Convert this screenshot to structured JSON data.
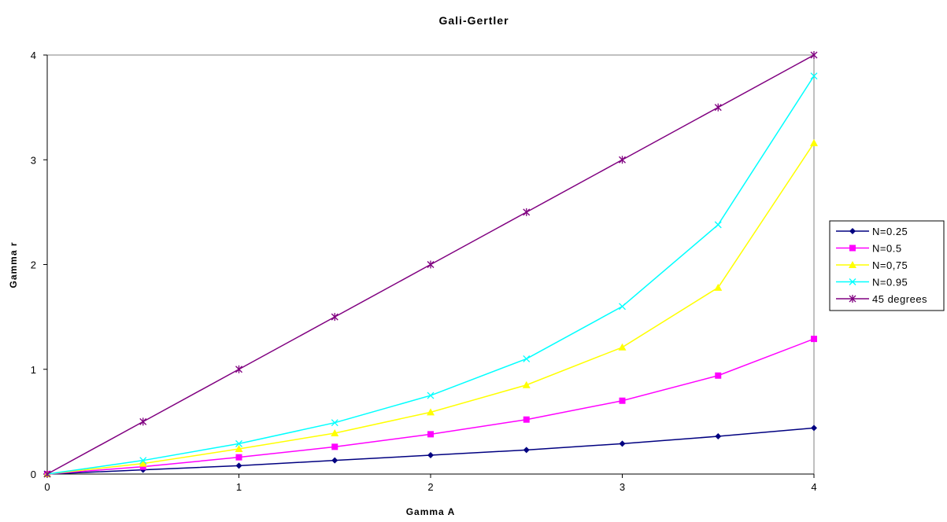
{
  "chart_data": {
    "type": "line",
    "title": "Gali-Gertler",
    "xlabel": "Gamma A",
    "ylabel": "Gamma r",
    "xlim": [
      0,
      4
    ],
    "ylim": [
      0,
      4
    ],
    "x_ticks": [
      "0",
      "1",
      "2",
      "3",
      "4"
    ],
    "y_ticks": [
      "0",
      "1",
      "2",
      "3",
      "4"
    ],
    "grid": false,
    "legend_position": "right",
    "x": [
      0,
      0.5,
      1,
      1.5,
      2,
      2.5,
      3,
      3.5,
      4
    ],
    "series": [
      {
        "name": "N=0.25",
        "color": "#000080",
        "marker": "diamond",
        "values": [
          0,
          0.04,
          0.08,
          0.13,
          0.18,
          0.23,
          0.29,
          0.36,
          0.44
        ]
      },
      {
        "name": "N=0.5",
        "color": "#ff00ff",
        "marker": "square",
        "values": [
          0,
          0.07,
          0.16,
          0.26,
          0.38,
          0.52,
          0.7,
          0.94,
          1.29
        ]
      },
      {
        "name": "N=0,75",
        "color": "#ffff00",
        "marker": "triangle",
        "values": [
          0,
          0.1,
          0.24,
          0.39,
          0.59,
          0.85,
          1.21,
          1.78,
          3.16
        ]
      },
      {
        "name": "N=0.95",
        "color": "#00ffff",
        "marker": "x",
        "values": [
          0,
          0.13,
          0.29,
          0.49,
          0.75,
          1.1,
          1.6,
          2.38,
          3.8
        ]
      },
      {
        "name": "45 degrees",
        "color": "#800080",
        "marker": "asterisk",
        "values": [
          0,
          0.5,
          1,
          1.5,
          2,
          2.5,
          3,
          3.5,
          4
        ]
      }
    ]
  }
}
